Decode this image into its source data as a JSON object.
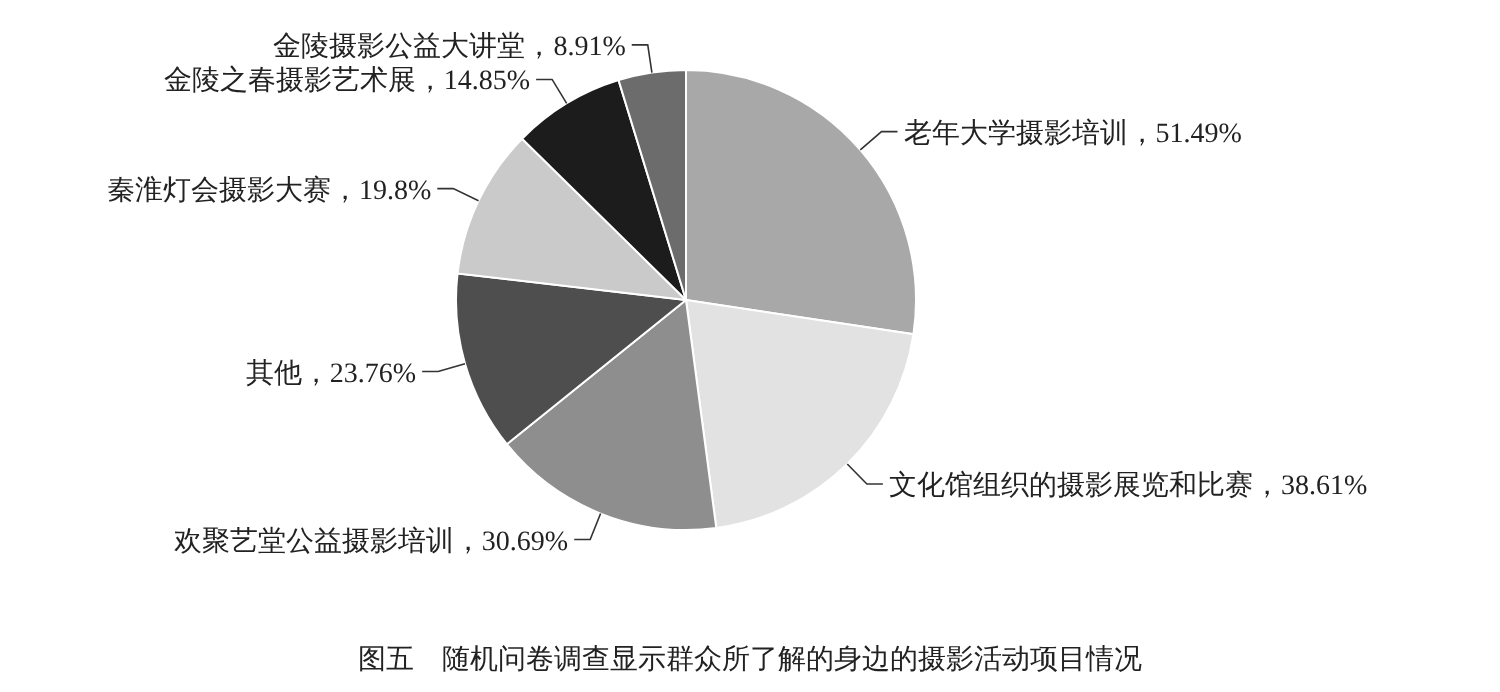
{
  "chart_data": {
    "type": "pie",
    "title": "图五　随机问卷调查显示群众所了解的身边的摄影活动项目情况",
    "categories": [
      "老年大学摄影培训",
      "文化馆组织的摄影展览和比赛",
      "欢聚艺堂公益摄影培训",
      "其他",
      "秦淮灯会摄影大赛",
      "金陵之春摄影艺术展",
      "金陵摄影公益大讲堂"
    ],
    "values": [
      51.49,
      38.61,
      30.69,
      23.76,
      19.8,
      14.85,
      8.91
    ],
    "value_labels": [
      "51.49%",
      "38.61%",
      "30.69%",
      "23.76%",
      "19.8%",
      "14.85%",
      "8.91%"
    ],
    "colors": [
      "#a8a8a8",
      "#e2e2e2",
      "#8e8e8e",
      "#4e4e4e",
      "#cacaca",
      "#1c1c1c",
      "#6c6c6c"
    ]
  }
}
